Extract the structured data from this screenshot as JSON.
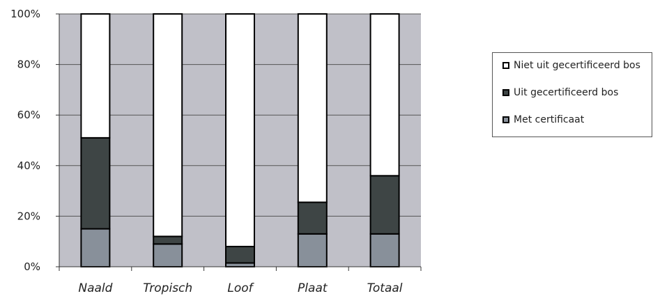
{
  "chart_data": {
    "type": "bar",
    "stacked": true,
    "categories": [
      "Naald",
      "Tropisch",
      "Loof",
      "Plaat",
      "Totaal"
    ],
    "series": [
      {
        "name": "Met certificaat",
        "color": "#88909a",
        "values": [
          15,
          9,
          1.5,
          13,
          13
        ]
      },
      {
        "name": "Uit gecertificeerd bos",
        "color": "#3e4545",
        "values": [
          36,
          3,
          6.5,
          12.5,
          23
        ]
      },
      {
        "name": "Niet uit gecertificeerd bos",
        "color": "#ffffff",
        "values": [
          49,
          88,
          92,
          74.5,
          64
        ]
      }
    ],
    "ylim": [
      0,
      100
    ],
    "yticks": [
      "0%",
      "20%",
      "40%",
      "60%",
      "80%",
      "100%"
    ],
    "plot_background": "#c0c0c8",
    "grid": true,
    "legend_position": "right",
    "title": "",
    "xlabel": "",
    "ylabel": ""
  },
  "legend": {
    "items": [
      {
        "label": "Niet uit gecertificeerd bos",
        "color": "#ffffff"
      },
      {
        "label": "Uit gecertificeerd bos",
        "color": "#3e4545"
      },
      {
        "label": "Met certificaat",
        "color": "#88909a"
      }
    ]
  }
}
